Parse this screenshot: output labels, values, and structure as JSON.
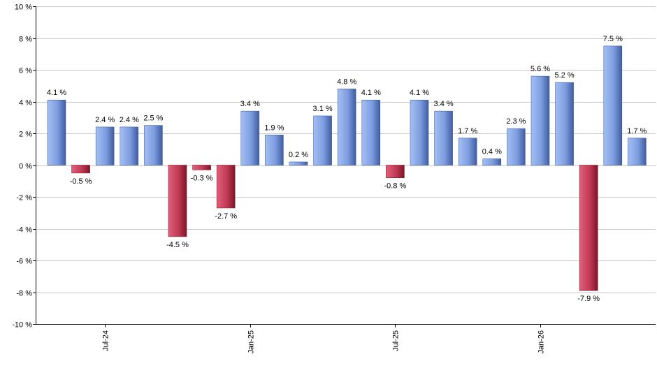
{
  "chart_data": {
    "type": "bar",
    "ylim": [
      -10,
      10
    ],
    "y_ticks": [
      10,
      8,
      6,
      4,
      2,
      0,
      -2,
      -4,
      -6,
      -8,
      -10
    ],
    "y_tick_suffix": " %",
    "grid": true,
    "values": [
      4.1,
      -0.5,
      2.4,
      2.4,
      2.5,
      -4.5,
      -0.3,
      -2.7,
      3.4,
      1.9,
      0.2,
      3.1,
      4.8,
      4.1,
      -0.8,
      4.1,
      3.4,
      1.7,
      0.4,
      2.3,
      5.6,
      5.2,
      -7.9,
      7.5,
      1.7
    ],
    "data_labels": [
      "4.1 %",
      "-0.5 %",
      "2.4 %",
      "2.4 %",
      "2.5 %",
      "-4.5 %",
      "-0.3 %",
      "-2.7 %",
      "3.4 %",
      "1.9 %",
      "0.2 %",
      "3.1 %",
      "4.8 %",
      "4.1 %",
      "-0.8 %",
      "4.1 %",
      "3.4 %",
      "1.7 %",
      "0.4 %",
      "2.3 %",
      "5.6 %",
      "5.2 %",
      "-7.9 %",
      "7.5 %",
      "1.7 %"
    ],
    "x_tick_labels": [
      {
        "label": "Jul-24",
        "bar_index": 2
      },
      {
        "label": "Jan-25",
        "bar_index": 8
      },
      {
        "label": "Jul-25",
        "bar_index": 14
      },
      {
        "label": "Jan-26",
        "bar_index": 20
      }
    ],
    "colors": {
      "positive_light": "#a4bff2",
      "positive_dark": "#4461a8",
      "negative_light": "#e0607a",
      "negative_dark": "#8a1830",
      "grid": "#c8c8c8",
      "axis": "#000000"
    }
  }
}
